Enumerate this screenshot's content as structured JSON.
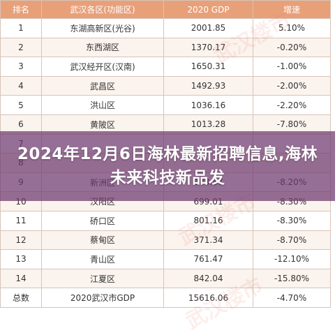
{
  "table": {
    "headers": [
      "排名",
      "武汉各区(功能区)",
      "2020 GDP",
      "增速"
    ],
    "rows": [
      [
        "1",
        "东湖高新区(光谷)",
        "2001.85",
        "5.10%"
      ],
      [
        "2",
        "东西湖区",
        "1370.17",
        "-0.20%"
      ],
      [
        "3",
        "武汉经开区(汉南)",
        "1650.31",
        "-1.00%"
      ],
      [
        "4",
        "武昌区",
        "1492.93",
        "-2.00%"
      ],
      [
        "5",
        "洪山区",
        "1036.16",
        "-2.20%"
      ],
      [
        "6",
        "黄陂区",
        "1013.28",
        "-7.80%"
      ],
      [
        "7",
        "",
        "",
        ""
      ],
      [
        "8",
        "",
        "",
        ""
      ],
      [
        "9",
        "新洲区",
        "888.57",
        "-8.20%"
      ],
      [
        "10",
        "汉阳区",
        "699.01",
        "-8.30%"
      ],
      [
        "11",
        "硚口区",
        "801.16",
        "-8.30%"
      ],
      [
        "12",
        "蔡甸区",
        "371.34",
        "-8.70%"
      ],
      [
        "13",
        "青山区",
        "761.47",
        "-12.10%"
      ],
      [
        "14",
        "江夏区",
        "842.04",
        "-15.80%"
      ],
      [
        "总数",
        "2020武汉市GDP",
        "15616.06",
        "-4.70%"
      ]
    ]
  },
  "overlay": {
    "title": "2024年12月6日海林最新招聘信息,海林未来科技新品发"
  },
  "watermarks": [
    "武汉楼市",
    "武汉楼市",
    "武汉楼市"
  ]
}
